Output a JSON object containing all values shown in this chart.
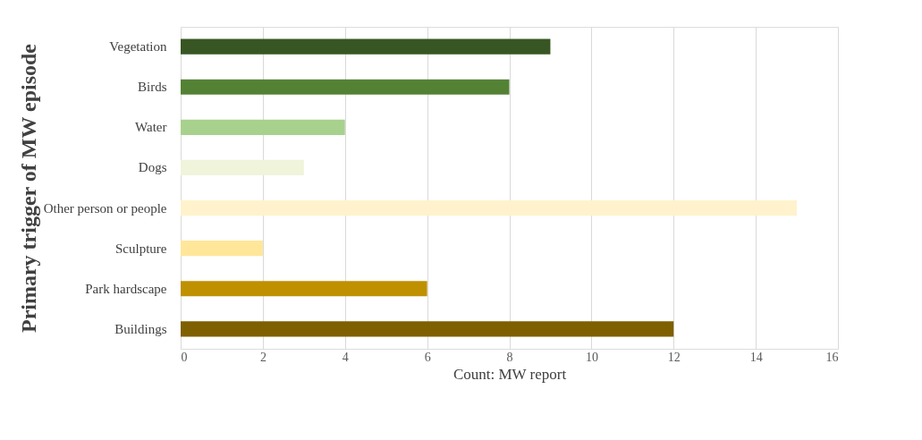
{
  "chart_data": {
    "type": "bar",
    "orientation": "horizontal",
    "xlabel": "Count: MW report",
    "ylabel": "Primary trigger of  MW episode",
    "categories": [
      "Vegetation",
      "Birds",
      "Water",
      "Dogs",
      "Other person or people",
      "Sculpture",
      "Park hardscape",
      "Buildings"
    ],
    "values": [
      9,
      8,
      4,
      3,
      15,
      2,
      6,
      12
    ],
    "colors": [
      "#375623",
      "#548235",
      "#a9d18e",
      "#eff4db",
      "#fff2cc",
      "#ffe699",
      "#bf9000",
      "#7f6000"
    ],
    "xlim": [
      0,
      16
    ],
    "xticks": [
      0,
      2,
      4,
      6,
      8,
      10,
      12,
      14,
      16
    ],
    "grid": "x"
  }
}
